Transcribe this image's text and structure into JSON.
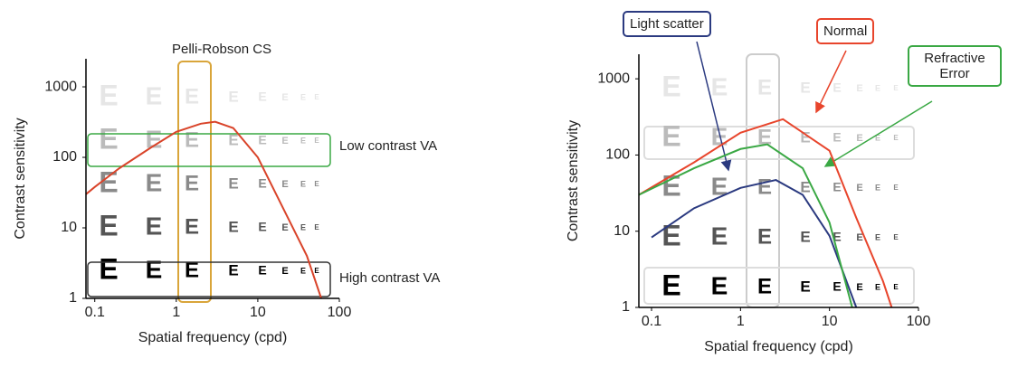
{
  "chart_data": [
    {
      "type": "line",
      "letter": "E",
      "xlabel": "Spatial frequency (cpd)",
      "ylabel": "Contrast sensitivity",
      "xscale": "log",
      "yscale": "log",
      "xlim": [
        0.078,
        100
      ],
      "ylim": [
        1,
        2500
      ],
      "xticks": [
        0.1,
        1,
        10,
        100
      ],
      "yticks": [
        1,
        10,
        100,
        1000
      ],
      "annotations": [
        "Pelli-Robson CS",
        "Low contrast VA",
        "High contrast VA"
      ],
      "series": [
        {
          "color": "#d9442a",
          "x": [
            0.078,
            0.1,
            0.2,
            0.5,
            1,
            2,
            3,
            5,
            10,
            20,
            40,
            60
          ],
          "values": [
            30,
            38,
            70,
            140,
            230,
            300,
            320,
            260,
            100,
            20,
            4,
            1
          ]
        }
      ]
    },
    {
      "type": "line",
      "letter": "E",
      "xlabel": "Spatial frequency (cpd)",
      "ylabel": "Contrast sensitivity",
      "xscale": "log",
      "yscale": "log",
      "xlim": [
        0.072,
        100
      ],
      "ylim": [
        1,
        2100
      ],
      "xticks": [
        0.1,
        1,
        10,
        100
      ],
      "yticks": [
        1,
        10,
        100,
        1000
      ],
      "series": [
        {
          "name": "Light scatter",
          "color": "#2b3a80",
          "x": [
            0.1,
            0.3,
            1,
            2.5,
            5,
            10,
            20
          ],
          "values": [
            8.3,
            20,
            37,
            47,
            30,
            8.7,
            1
          ]
        },
        {
          "name": "Normal",
          "color": "#e8452c",
          "x": [
            0.072,
            0.3,
            1,
            3,
            10,
            20,
            40,
            50
          ],
          "values": [
            30,
            80,
            196,
            295,
            114,
            15,
            2.2,
            1
          ]
        },
        {
          "name": "Refractive Error",
          "color": "#3aa844",
          "x": [
            0.072,
            0.3,
            1,
            2,
            5,
            10,
            18
          ],
          "values": [
            30,
            67,
            120,
            138,
            67,
            13,
            1
          ]
        }
      ]
    }
  ]
}
